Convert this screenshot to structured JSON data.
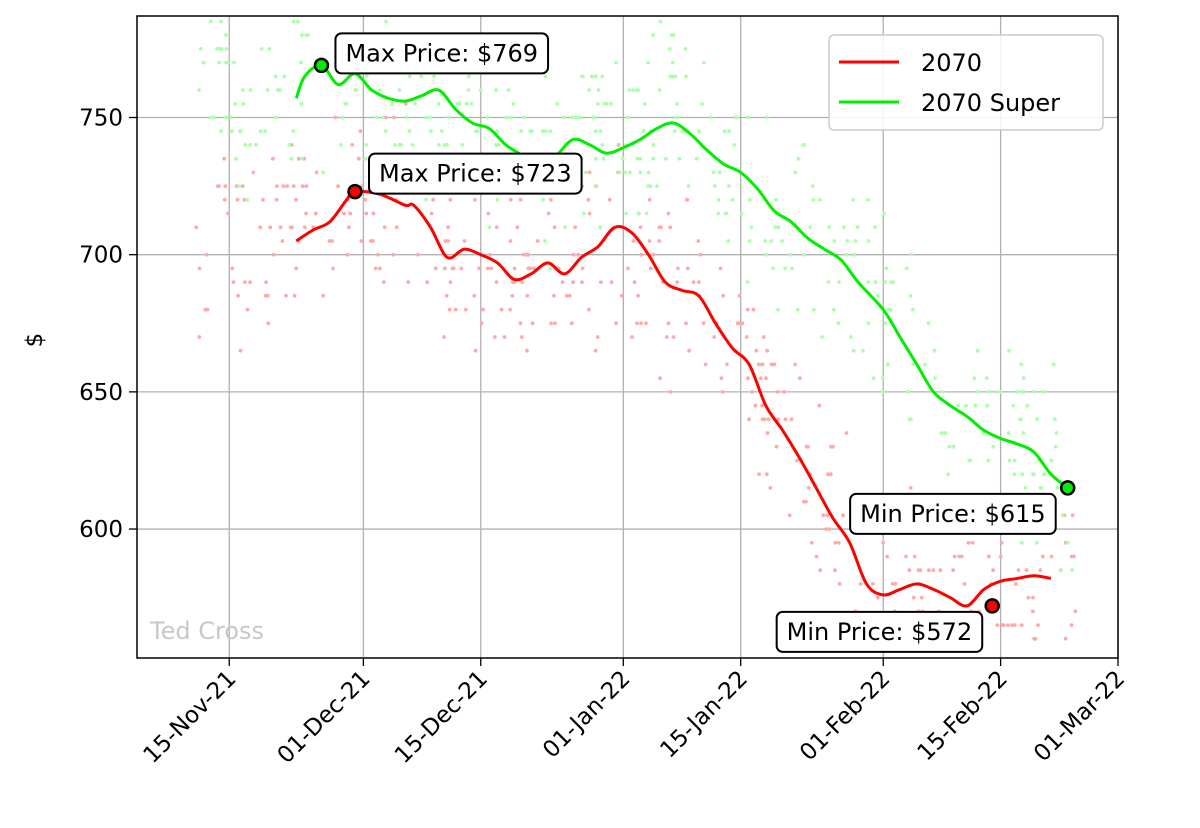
{
  "chart_data": {
    "type": "line",
    "ylabel": "$",
    "xlabel": "",
    "xlim": [
      "2021-11-04",
      "2022-03-01"
    ],
    "ylim": [
      553,
      787
    ],
    "grid": true,
    "legend_position": "top-right",
    "x_ticks": [
      "2021-11-15",
      "2021-12-01",
      "2021-12-15",
      "2022-01-01",
      "2022-01-15",
      "2022-02-01",
      "2022-02-15",
      "2022-03-01"
    ],
    "x_tick_labels": [
      "15-Nov-21",
      "01-Dec-21",
      "15-Dec-21",
      "01-Jan-22",
      "15-Jan-22",
      "01-Feb-22",
      "15-Feb-22",
      "01-Mar-22"
    ],
    "y_ticks": [
      600,
      650,
      700,
      750
    ],
    "y_tick_labels": [
      "600",
      "650",
      "700",
      "750"
    ],
    "watermark": "Ted Cross",
    "series": [
      {
        "name": "2070",
        "color": "#ff0000",
        "dot_color": "#ffaaaa",
        "x": [
          "2021-11-23",
          "2021-11-25",
          "2021-11-27",
          "2021-11-29",
          "2021-11-30",
          "2021-12-03",
          "2021-12-06",
          "2021-12-07",
          "2021-12-09",
          "2021-12-11",
          "2021-12-13",
          "2021-12-15",
          "2021-12-17",
          "2021-12-19",
          "2021-12-21",
          "2021-12-23",
          "2021-12-25",
          "2021-12-27",
          "2021-12-29",
          "2021-12-31",
          "2022-01-02",
          "2022-01-04",
          "2022-01-06",
          "2022-01-08",
          "2022-01-10",
          "2022-01-12",
          "2022-01-14",
          "2022-01-16",
          "2022-01-18",
          "2022-01-20",
          "2022-01-22",
          "2022-01-24",
          "2022-01-26",
          "2022-01-28",
          "2022-01-30",
          "2022-02-01",
          "2022-02-03",
          "2022-02-05",
          "2022-02-07",
          "2022-02-09",
          "2022-02-11",
          "2022-02-13",
          "2022-02-15",
          "2022-02-17",
          "2022-02-19",
          "2022-02-21"
        ],
        "y": [
          705,
          709,
          712,
          720,
          723,
          722,
          718,
          718,
          710,
          699,
          702,
          700,
          697,
          691,
          693,
          697,
          693,
          699,
          703,
          710,
          708,
          700,
          690,
          687,
          685,
          675,
          666,
          660,
          645,
          636,
          626,
          615,
          604,
          595,
          580,
          576,
          578,
          580,
          578,
          575,
          572,
          578,
          581,
          582,
          583,
          582
        ],
        "max_label": "Max Price: $723",
        "max_point": [
          "2021-11-30",
          723
        ],
        "min_label": "Min Price: $572",
        "min_point": [
          "2022-02-14",
          572
        ]
      },
      {
        "name": "2070 Super",
        "color": "#00ee00",
        "dot_color": "#aaffaa",
        "x": [
          "2021-11-23",
          "2021-11-24",
          "2021-11-26",
          "2021-11-28",
          "2021-11-30",
          "2021-12-02",
          "2021-12-04",
          "2021-12-06",
          "2021-12-08",
          "2021-12-10",
          "2021-12-12",
          "2021-12-14",
          "2021-12-16",
          "2021-12-18",
          "2021-12-20",
          "2021-12-22",
          "2021-12-24",
          "2021-12-26",
          "2021-12-28",
          "2021-12-30",
          "2022-01-01",
          "2022-01-03",
          "2022-01-05",
          "2022-01-07",
          "2022-01-09",
          "2022-01-11",
          "2022-01-13",
          "2022-01-15",
          "2022-01-17",
          "2022-01-19",
          "2022-01-21",
          "2022-01-23",
          "2022-01-25",
          "2022-01-27",
          "2022-01-29",
          "2022-02-01",
          "2022-02-03",
          "2022-02-05",
          "2022-02-07",
          "2022-02-09",
          "2022-02-11",
          "2022-02-13",
          "2022-02-15",
          "2022-02-17",
          "2022-02-19",
          "2022-02-21",
          "2022-02-23"
        ],
        "y": [
          757,
          765,
          769,
          762,
          766,
          760,
          757,
          756,
          758,
          760,
          753,
          748,
          746,
          740,
          736,
          731,
          736,
          742,
          740,
          737,
          739,
          742,
          746,
          748,
          744,
          738,
          733,
          730,
          724,
          716,
          712,
          706,
          702,
          698,
          690,
          680,
          670,
          660,
          650,
          645,
          641,
          636,
          633,
          631,
          628,
          620,
          615
        ],
        "max_label": "Max Price: $769",
        "max_point": [
          "2021-11-26",
          769
        ],
        "min_label": "Min Price: $615",
        "min_point": [
          "2022-02-23",
          615
        ]
      }
    ]
  }
}
